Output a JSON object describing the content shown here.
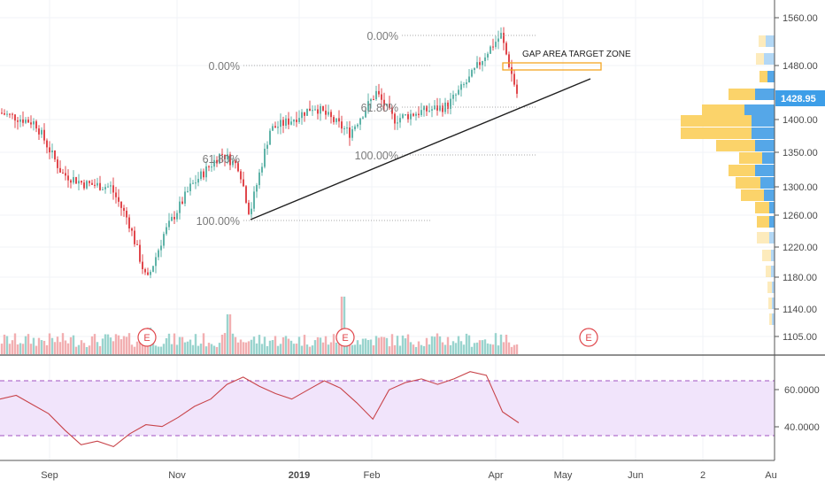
{
  "colors": {
    "up": "#5fb3a8",
    "down": "#e0474c",
    "volume_up": "#8fcfc9",
    "volume_down": "#f1a6a8",
    "fib_line": "#a8a8a8",
    "trendline": "#1f1f1f",
    "target_zone": "#f5a623",
    "vp_yellow": "#fbd36a",
    "vp_blue": "#55a7e8",
    "rsi_band": "#f1e4fb",
    "rsi_band_line": "#a050c0",
    "rsi_line": "#c8444a",
    "last_price_bg": "#3d9ee8",
    "grid": "#f0f3f7"
  },
  "price_axis": {
    "labels": [
      "1560.00",
      "1480.00",
      "1400.00",
      "1350.00",
      "1300.00",
      "1260.00",
      "1220.00",
      "1180.00",
      "1140.00",
      "1105.00"
    ],
    "last_price": "1428.95"
  },
  "rsi_axis": {
    "labels": [
      "60.0000",
      "40.0000"
    ]
  },
  "time_axis": {
    "labels": [
      "Sep",
      "Nov",
      "2019",
      "Feb",
      "Apr",
      "May",
      "Jun",
      "2",
      "Au"
    ]
  },
  "annotations": {
    "gap_zone_label": "GAP AREA TARGET ZONE",
    "earnings_marker": "E",
    "fib_1": {
      "top": "0.00%",
      "mid": "61.80%",
      "bottom": "100.00%"
    },
    "fib_2": {
      "top": "0.00%",
      "mid": "61.80%",
      "bottom": "100.00%"
    }
  },
  "chart_data": [
    {
      "type": "candlestick",
      "series": "price",
      "x_labels": [
        "Sep",
        "Nov",
        "2019",
        "Feb",
        "Apr",
        "May",
        "Jun",
        "2",
        "Au"
      ],
      "close_path": [
        [
          "Aug",
          1410
        ],
        [
          "early Sep",
          1395
        ],
        [
          "mid Sep",
          1320
        ],
        [
          "late Sep",
          1305
        ],
        [
          "early Oct",
          1300
        ],
        [
          "mid Oct",
          1250
        ],
        [
          "late Oct",
          1160
        ],
        [
          "early Nov",
          1230
        ],
        [
          "mid Nov",
          1300
        ],
        [
          "late Nov",
          1350
        ],
        [
          "early Dec",
          1330
        ],
        [
          "mid Dec",
          1260
        ],
        [
          "late Dec",
          1385
        ],
        [
          "early Jan",
          1400
        ],
        [
          "mid Jan",
          1420
        ],
        [
          "late Jan",
          1380
        ],
        [
          "early Feb",
          1440
        ],
        [
          "mid Feb",
          1400
        ],
        [
          "late Feb",
          1410
        ],
        [
          "early Mar",
          1420
        ],
        [
          "mid Mar",
          1460
        ],
        [
          "late Mar",
          1500
        ],
        [
          "early Apr",
          1525
        ],
        [
          "mid Apr",
          1428.95
        ]
      ],
      "ylim": [
        1085,
        1575
      ],
      "last_value": 1428.95
    },
    {
      "type": "bar",
      "series": "volume",
      "note": "volume histogram along the bottom of the price pane"
    },
    {
      "type": "line",
      "series": "RSI",
      "ylim": [
        20,
        75
      ],
      "band": [
        35,
        65
      ],
      "values": [
        55,
        57,
        52,
        47,
        38,
        30,
        32,
        29,
        36,
        41,
        40,
        45,
        51,
        55,
        63,
        67,
        62,
        58,
        55,
        60,
        65,
        61,
        53,
        44,
        60,
        64,
        66,
        63,
        66,
        70,
        68,
        48,
        42
      ]
    },
    {
      "type": "bar",
      "series": "volume_profile",
      "orientation": "horizontal"
    }
  ]
}
